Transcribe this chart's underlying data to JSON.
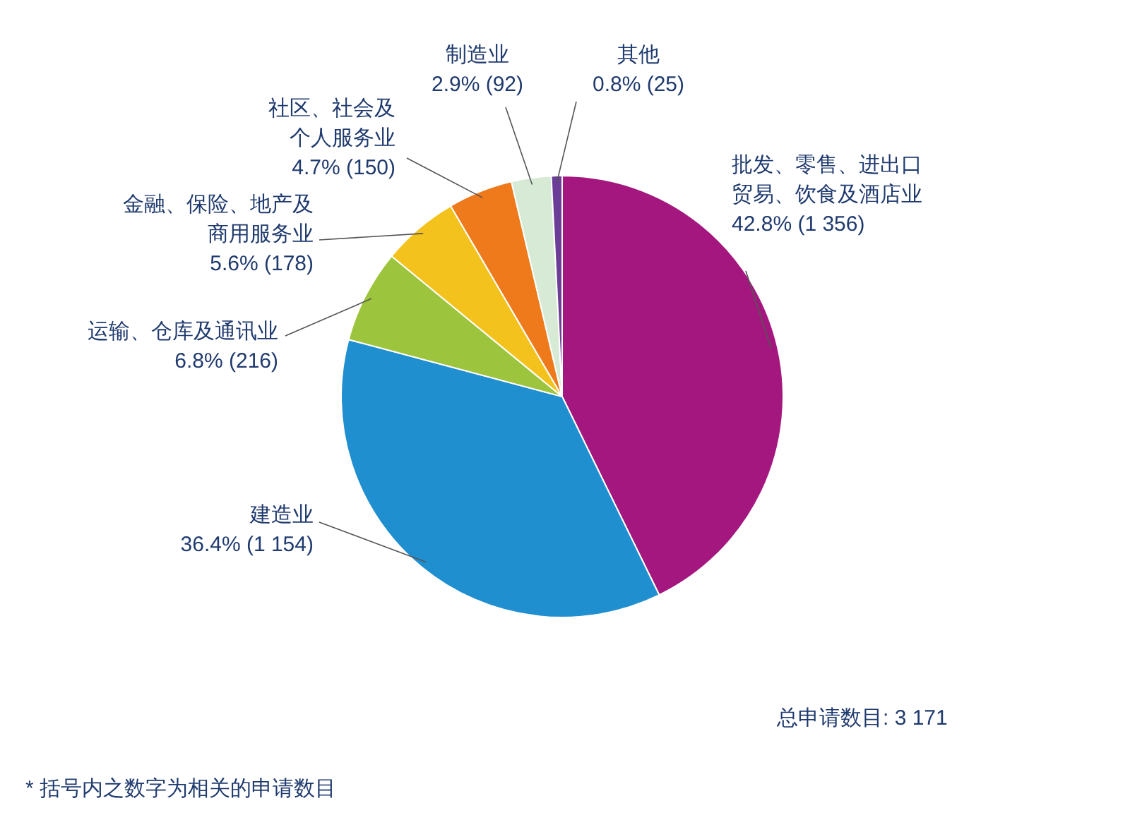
{
  "chart_data": {
    "type": "pie",
    "categories": [
      "批发、零售、进出口贸易、饮食及酒店业",
      "建造业",
      "运输、仓库及通讯业",
      "金融、保险、地产及商用服务业",
      "社区、社会及个人服务业",
      "制造业",
      "其他"
    ],
    "values": [
      1356,
      1154,
      216,
      178,
      150,
      92,
      25
    ],
    "value_labels": [
      "42.8% (1 356)",
      "36.4% (1 154)",
      "6.8% (216)",
      "5.6% (178)",
      "4.7% (150)",
      "2.9% (92)",
      "0.8% (25)"
    ],
    "colors": [
      "#a3177f",
      "#1f8fd0",
      "#9cc43c",
      "#f4c21c",
      "#ee7a1c",
      "#d6ead6",
      "#6b3d96"
    ],
    "legend": false,
    "annotations": [
      "总申请数目: 3 171",
      "* 括号内之数字为相关的申请数目"
    ]
  }
}
